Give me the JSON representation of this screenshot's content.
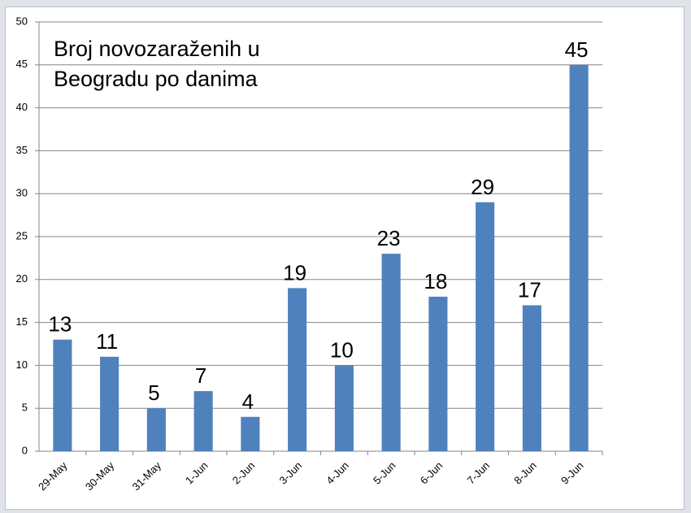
{
  "chart_data": {
    "type": "bar",
    "title": "Broj novozaraženih u Beogradu po danima",
    "categories": [
      "29-May",
      "30-May",
      "31-May",
      "1-Jun",
      "2-Jun",
      "3-Jun",
      "4-Jun",
      "5-Jun",
      "6-Jun",
      "7-Jun",
      "8-Jun",
      "9-Jun"
    ],
    "values": [
      13,
      11,
      5,
      7,
      4,
      19,
      10,
      23,
      18,
      29,
      17,
      45
    ],
    "color": "#4f81bd",
    "ylim": [
      0,
      50
    ],
    "yticks": [
      0,
      5,
      10,
      15,
      20,
      25,
      30,
      35,
      40,
      45,
      50
    ],
    "grid": true
  }
}
